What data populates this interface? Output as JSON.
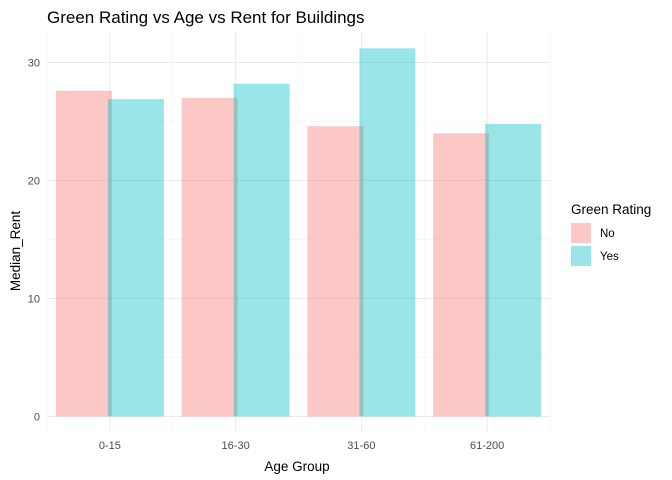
{
  "chart_data": {
    "type": "bar",
    "title": "Green Rating vs Age vs Rent for Buildings",
    "xlabel": "Age Group",
    "ylabel": "Median_Rent",
    "categories": [
      "0-15",
      "16-30",
      "31-60",
      "61-200"
    ],
    "series": [
      {
        "name": "No",
        "values": [
          27.6,
          27.0,
          24.6,
          24.0
        ],
        "color": "#F8766D"
      },
      {
        "name": "Yes",
        "values": [
          26.9,
          28.2,
          31.2,
          24.8
        ],
        "color": "#00BFC4"
      }
    ],
    "ylim": [
      0,
      32.5
    ],
    "yticks": [
      0,
      10,
      20,
      30
    ],
    "grid": true,
    "bar_opacity": 0.4,
    "legend": {
      "title": "Green Rating",
      "placement": "right"
    }
  }
}
